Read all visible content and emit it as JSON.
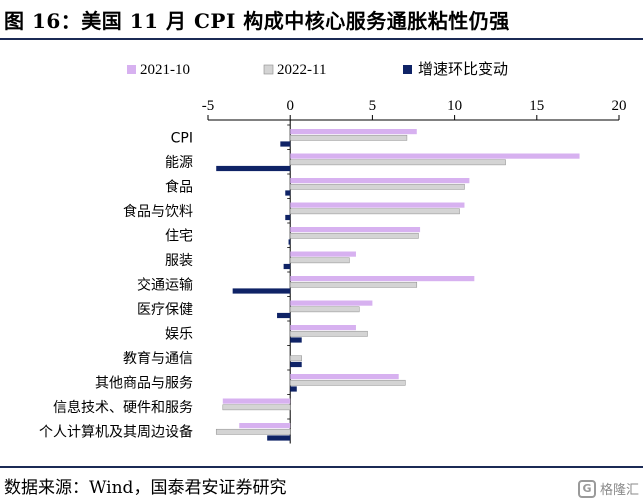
{
  "header": {
    "title": "图 16：美国 11 月 CPI 构成中核心服务通胀粘性仍强"
  },
  "footer": {
    "source": "数据来源：Wind，国泰君安证券研究",
    "watermark_text": "格隆汇",
    "watermark_logo": "G"
  },
  "colors": {
    "s2021": "#d7b1f0",
    "s2022": "#d4d4d4",
    "s2022_border": "#8c8c8c",
    "mom": "#0f2366",
    "axis": "#000000",
    "rule": "#1b2a55"
  },
  "chart_data": {
    "type": "bar",
    "orientation": "horizontal",
    "title": "",
    "xlabel": "",
    "ylabel": "",
    "xlim": [
      -5,
      20
    ],
    "xticks": [
      -5,
      0,
      5,
      10,
      15,
      20
    ],
    "grid": false,
    "legend_position": "top",
    "categories": [
      "CPI",
      "能源",
      "食品",
      "食品与饮料",
      "住宅",
      "服装",
      "交通运输",
      "医疗保健",
      "娱乐",
      "教育与通信",
      "其他商品与服务",
      "信息技术、硬件和服务",
      "个人计算机及其周边设备"
    ],
    "series": [
      {
        "name": "2021-10",
        "values": [
          7.7,
          17.6,
          10.9,
          10.6,
          7.9,
          4.0,
          11.2,
          5.0,
          4.0,
          0.0,
          6.6,
          -4.1,
          -3.1
        ]
      },
      {
        "name": "2022-11",
        "values": [
          7.1,
          13.1,
          10.6,
          10.3,
          7.8,
          3.6,
          7.7,
          4.2,
          4.7,
          0.7,
          7.0,
          -4.1,
          -4.5
        ]
      },
      {
        "name": "增速环比变动",
        "values": [
          -0.6,
          -4.5,
          -0.3,
          -0.3,
          -0.1,
          -0.4,
          -3.5,
          -0.8,
          0.7,
          0.7,
          0.4,
          0.0,
          -1.4
        ]
      }
    ]
  }
}
